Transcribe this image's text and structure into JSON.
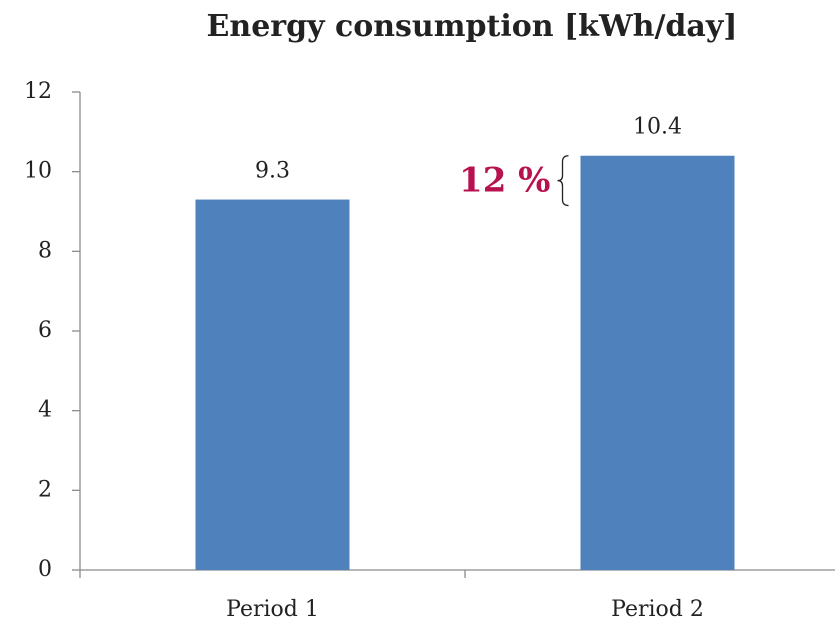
{
  "chart_data": {
    "type": "bar",
    "title": "Energy consumption [kWh/day]",
    "categories": [
      "Period 1",
      "Period 2"
    ],
    "values": [
      9.3,
      10.4
    ],
    "color": "#4f81bd",
    "ylim": [
      0,
      12
    ],
    "yticks": [
      0,
      2,
      4,
      6,
      8,
      10,
      12
    ],
    "annotation": "12 %",
    "annotation_color": "#b8114f"
  }
}
